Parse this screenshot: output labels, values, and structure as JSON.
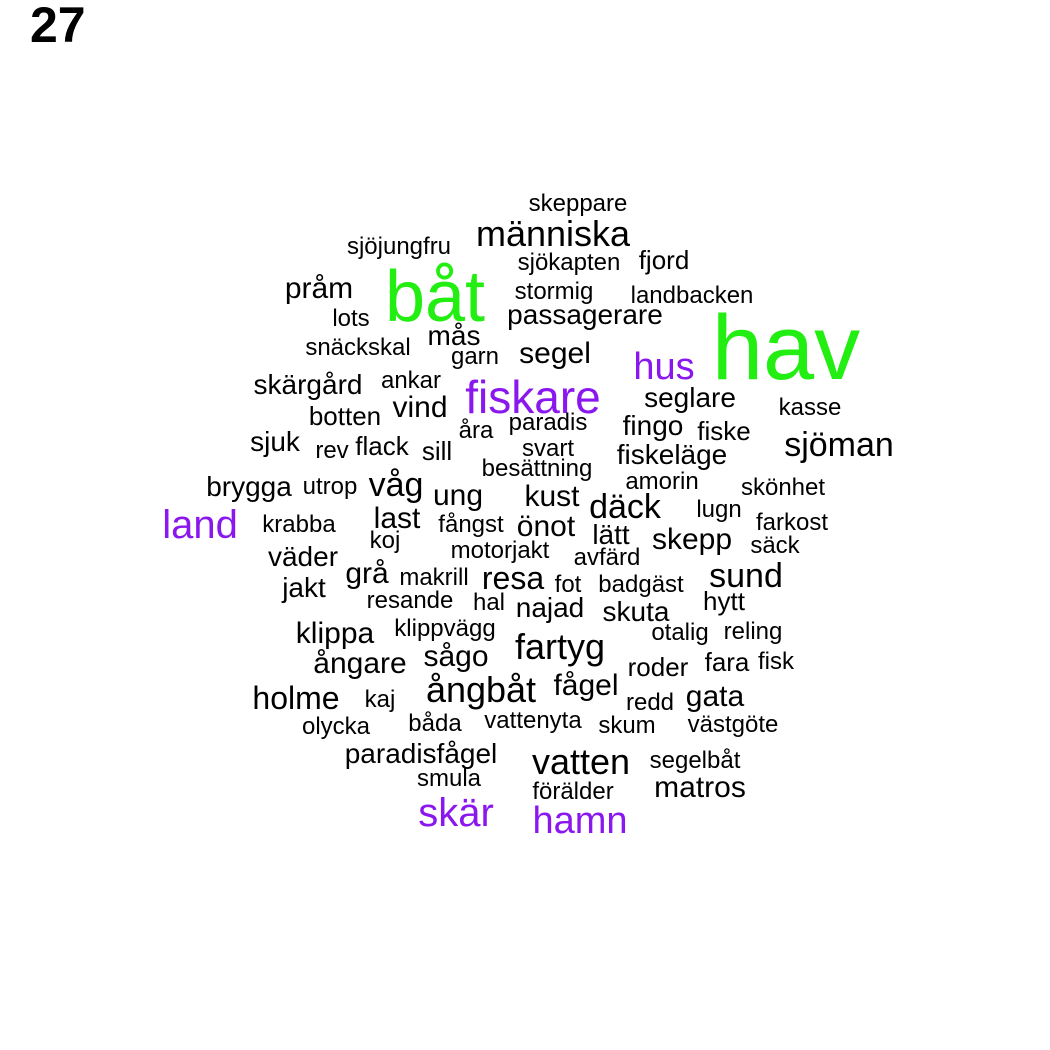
{
  "panel_label": "27",
  "colors": {
    "green": "#22ee11",
    "purple": "#8a17ee",
    "black": "#000000"
  },
  "words": [
    {
      "text": "hav",
      "color": "green",
      "size": 6
    },
    {
      "text": "båt",
      "color": "green",
      "size": 6
    },
    {
      "text": "fiskare",
      "color": "purple",
      "size": 5
    },
    {
      "text": "land",
      "color": "purple",
      "size": 4
    },
    {
      "text": "skär",
      "color": "purple",
      "size": 4
    },
    {
      "text": "hamn",
      "color": "purple",
      "size": 4
    },
    {
      "text": "hus",
      "color": "purple",
      "size": 4
    },
    {
      "text": "människa",
      "color": "black",
      "size": 3
    },
    {
      "text": "sjöman",
      "color": "black",
      "size": 3
    },
    {
      "text": "fartyg",
      "color": "black",
      "size": 3
    },
    {
      "text": "ångbåt",
      "color": "black",
      "size": 3
    },
    {
      "text": "vatten",
      "color": "black",
      "size": 3
    },
    {
      "text": "däck",
      "color": "black",
      "size": 3
    },
    {
      "text": "sund",
      "color": "black",
      "size": 3
    },
    {
      "text": "holme",
      "color": "black",
      "size": 3
    },
    {
      "text": "skeppare",
      "color": "black",
      "size": 1
    },
    {
      "text": "sjöjungfru",
      "color": "black",
      "size": 1
    },
    {
      "text": "sjökapten",
      "color": "black",
      "size": 1
    },
    {
      "text": "fjord",
      "color": "black",
      "size": 1
    },
    {
      "text": "pråm",
      "color": "black",
      "size": 2
    },
    {
      "text": "stormig",
      "color": "black",
      "size": 1
    },
    {
      "text": "landbacken",
      "color": "black",
      "size": 1
    },
    {
      "text": "lots",
      "color": "black",
      "size": 1
    },
    {
      "text": "passagerare",
      "color": "black",
      "size": 2
    },
    {
      "text": "mås",
      "color": "black",
      "size": 2
    },
    {
      "text": "snäckskal",
      "color": "black",
      "size": 1
    },
    {
      "text": "garn",
      "color": "black",
      "size": 1
    },
    {
      "text": "segel",
      "color": "black",
      "size": 2
    },
    {
      "text": "skärgård",
      "color": "black",
      "size": 2
    },
    {
      "text": "ankar",
      "color": "black",
      "size": 1
    },
    {
      "text": "seglare",
      "color": "black",
      "size": 2
    },
    {
      "text": "botten",
      "color": "black",
      "size": 1
    },
    {
      "text": "vind",
      "color": "black",
      "size": 2
    },
    {
      "text": "kasse",
      "color": "black",
      "size": 1
    },
    {
      "text": "paradis",
      "color": "black",
      "size": 1
    },
    {
      "text": "fingo",
      "color": "black",
      "size": 2
    },
    {
      "text": "åra",
      "color": "black",
      "size": 1
    },
    {
      "text": "fiske",
      "color": "black",
      "size": 1
    },
    {
      "text": "sjuk",
      "color": "black",
      "size": 2
    },
    {
      "text": "rev",
      "color": "black",
      "size": 1
    },
    {
      "text": "flack",
      "color": "black",
      "size": 1
    },
    {
      "text": "sill",
      "color": "black",
      "size": 1
    },
    {
      "text": "svart",
      "color": "black",
      "size": 1
    },
    {
      "text": "fiskeläge",
      "color": "black",
      "size": 2
    },
    {
      "text": "besättning",
      "color": "black",
      "size": 1
    },
    {
      "text": "brygga",
      "color": "black",
      "size": 2
    },
    {
      "text": "utrop",
      "color": "black",
      "size": 1
    },
    {
      "text": "våg",
      "color": "black",
      "size": 3
    },
    {
      "text": "amorin",
      "color": "black",
      "size": 1
    },
    {
      "text": "skönhet",
      "color": "black",
      "size": 1
    },
    {
      "text": "ung",
      "color": "black",
      "size": 2
    },
    {
      "text": "kust",
      "color": "black",
      "size": 2
    },
    {
      "text": "lugn",
      "color": "black",
      "size": 1
    },
    {
      "text": "krabba",
      "color": "black",
      "size": 1
    },
    {
      "text": "last",
      "color": "black",
      "size": 2
    },
    {
      "text": "fångst",
      "color": "black",
      "size": 1
    },
    {
      "text": "önot",
      "color": "black",
      "size": 2
    },
    {
      "text": "farkost",
      "color": "black",
      "size": 1
    },
    {
      "text": "koj",
      "color": "black",
      "size": 1
    },
    {
      "text": "lätt",
      "color": "black",
      "size": 2
    },
    {
      "text": "skepp",
      "color": "black",
      "size": 2
    },
    {
      "text": "väder",
      "color": "black",
      "size": 2
    },
    {
      "text": "motorjakt",
      "color": "black",
      "size": 1
    },
    {
      "text": "säck",
      "color": "black",
      "size": 1
    },
    {
      "text": "avfärd",
      "color": "black",
      "size": 1
    },
    {
      "text": "grå",
      "color": "black",
      "size": 2
    },
    {
      "text": "makrill",
      "color": "black",
      "size": 1
    },
    {
      "text": "resa",
      "color": "black",
      "size": 2
    },
    {
      "text": "jakt",
      "color": "black",
      "size": 2
    },
    {
      "text": "fot",
      "color": "black",
      "size": 1
    },
    {
      "text": "badgäst",
      "color": "black",
      "size": 1
    },
    {
      "text": "resande",
      "color": "black",
      "size": 1
    },
    {
      "text": "hal",
      "color": "black",
      "size": 1
    },
    {
      "text": "najad",
      "color": "black",
      "size": 2
    },
    {
      "text": "hytt",
      "color": "black",
      "size": 1
    },
    {
      "text": "skuta",
      "color": "black",
      "size": 2
    },
    {
      "text": "klippa",
      "color": "black",
      "size": 2
    },
    {
      "text": "klippvägg",
      "color": "black",
      "size": 1
    },
    {
      "text": "otalig",
      "color": "black",
      "size": 1
    },
    {
      "text": "reling",
      "color": "black",
      "size": 1
    },
    {
      "text": "ångare",
      "color": "black",
      "size": 2
    },
    {
      "text": "sågo",
      "color": "black",
      "size": 2
    },
    {
      "text": "roder",
      "color": "black",
      "size": 1
    },
    {
      "text": "fara",
      "color": "black",
      "size": 1
    },
    {
      "text": "fisk",
      "color": "black",
      "size": 1
    },
    {
      "text": "fågel",
      "color": "black",
      "size": 2
    },
    {
      "text": "gata",
      "color": "black",
      "size": 2
    },
    {
      "text": "kaj",
      "color": "black",
      "size": 1
    },
    {
      "text": "redd",
      "color": "black",
      "size": 1
    },
    {
      "text": "olycka",
      "color": "black",
      "size": 1
    },
    {
      "text": "båda",
      "color": "black",
      "size": 1
    },
    {
      "text": "vattenyta",
      "color": "black",
      "size": 1
    },
    {
      "text": "skum",
      "color": "black",
      "size": 1
    },
    {
      "text": "västgöte",
      "color": "black",
      "size": 1
    },
    {
      "text": "paradisfågel",
      "color": "black",
      "size": 2
    },
    {
      "text": "segelbåt",
      "color": "black",
      "size": 1
    },
    {
      "text": "smula",
      "color": "black",
      "size": 1
    },
    {
      "text": "matros",
      "color": "black",
      "size": 2
    },
    {
      "text": "förälder",
      "color": "black",
      "size": 1
    }
  ]
}
